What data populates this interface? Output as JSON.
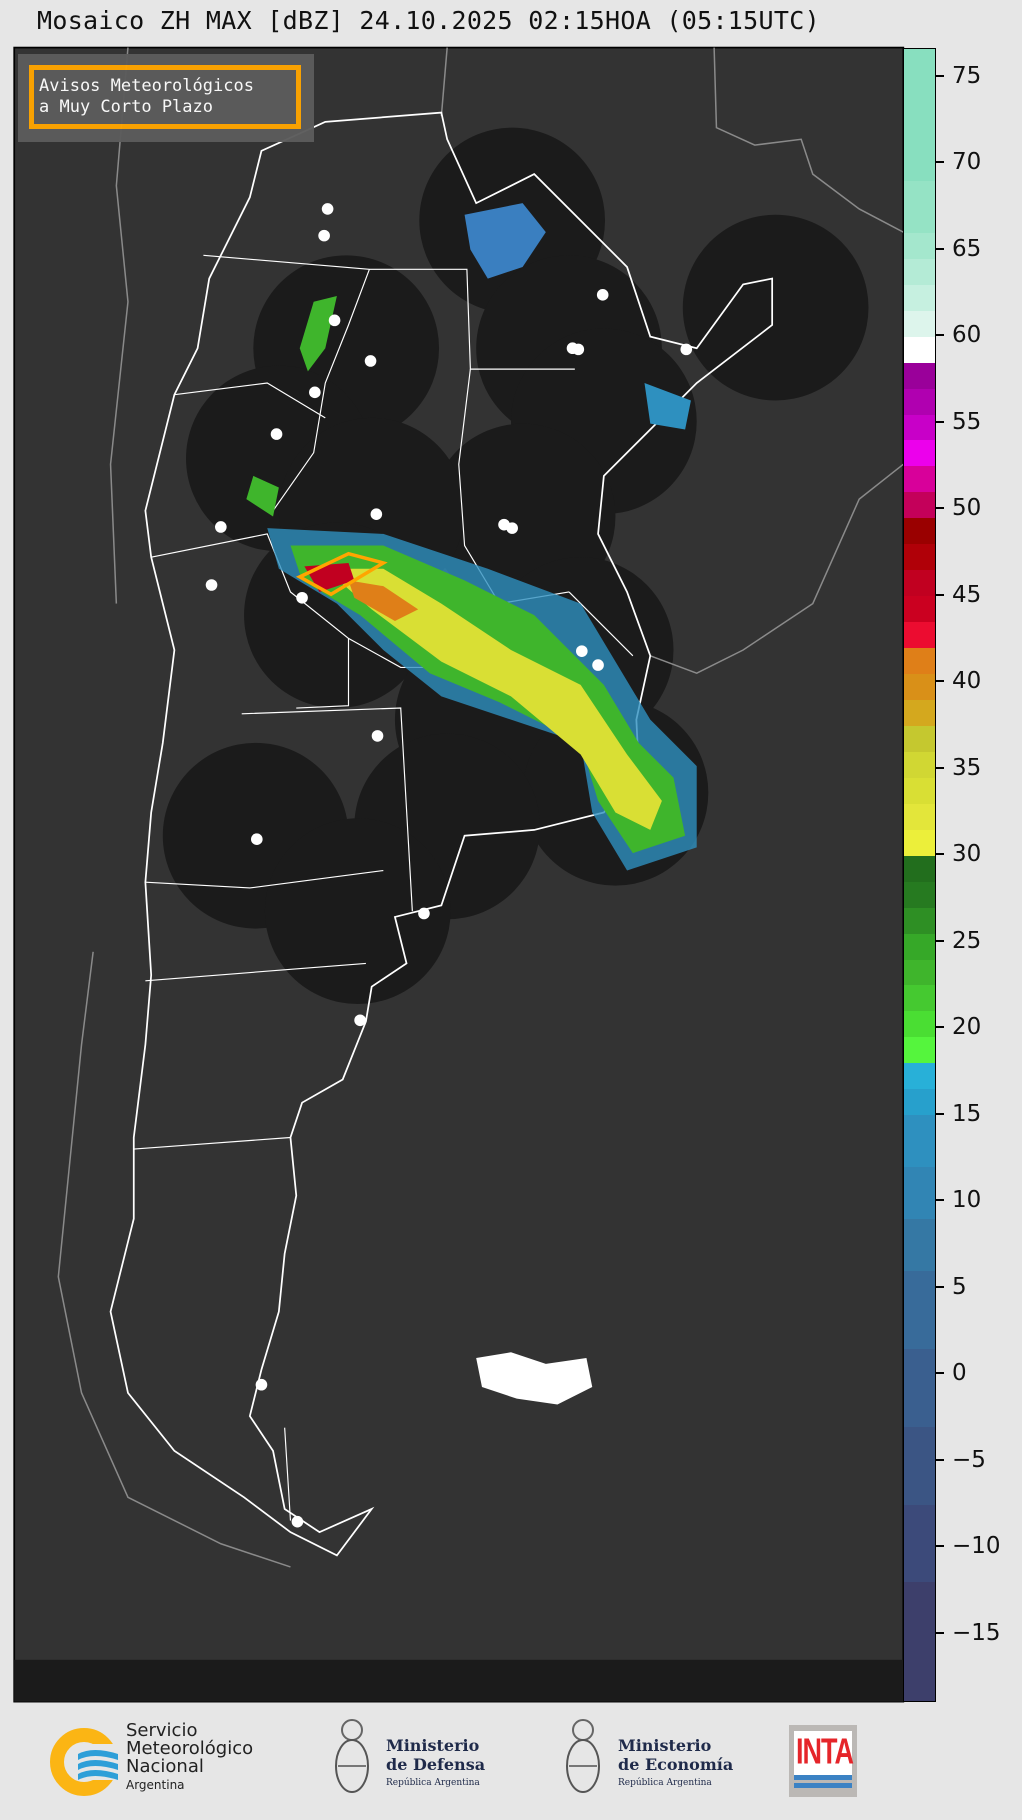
{
  "title": "Mosaico ZH MAX [dBZ] 24.10.2025 02:15HOA (05:15UTC)",
  "legend_box": {
    "line1": "Avisos Meteorológicos",
    "line2": "a Muy Corto Plazo",
    "border_color": "#ffa500"
  },
  "colorbar": {
    "unit": "dBZ",
    "range": [
      -19,
      76.6
    ],
    "ticks": [
      "75",
      "70",
      "65",
      "60",
      "55",
      "50",
      "45",
      "40",
      "35",
      "30",
      "25",
      "20",
      "15",
      "10",
      "5",
      "0",
      "−5",
      "−10",
      "−15"
    ],
    "tick_values": [
      75,
      70,
      65,
      60,
      55,
      50,
      45,
      40,
      35,
      30,
      25,
      20,
      15,
      10,
      5,
      0,
      -5,
      -10,
      -15
    ],
    "bins": [
      [
        -19,
        "#3d3f6b"
      ],
      [
        -12,
        "#3c4a7a"
      ],
      [
        -7.5,
        "#3b5584"
      ],
      [
        -3,
        "#3a5f8f"
      ],
      [
        1.5,
        "#386b9a"
      ],
      [
        6,
        "#3578a4"
      ],
      [
        9,
        "#3185b4"
      ],
      [
        12,
        "#2e90bf"
      ],
      [
        15,
        "#27a0cc"
      ],
      [
        16.5,
        "#28b0d8"
      ],
      [
        18,
        "#55f53d"
      ],
      [
        19.5,
        "#4ade33"
      ],
      [
        21,
        "#45c930"
      ],
      [
        22.5,
        "#3fb52c"
      ],
      [
        24,
        "#36a828"
      ],
      [
        25.5,
        "#2e8f24"
      ],
      [
        27,
        "#267a20"
      ],
      [
        28.5,
        "#226e1d"
      ],
      [
        30,
        "#ecef3a"
      ],
      [
        31.5,
        "#e3e63a"
      ],
      [
        33,
        "#d9df34"
      ],
      [
        34.5,
        "#d1d733"
      ],
      [
        36,
        "#c5c82f"
      ],
      [
        37.5,
        "#d4a81e"
      ],
      [
        39,
        "#d99018"
      ],
      [
        40.5,
        "#df7f18"
      ],
      [
        42,
        "#ec0c30"
      ],
      [
        43.5,
        "#cb0020"
      ],
      [
        45,
        "#c10020"
      ],
      [
        46.5,
        "#b00008"
      ],
      [
        48,
        "#9a0000"
      ],
      [
        49.5,
        "#c4005a"
      ],
      [
        51,
        "#d8009a"
      ],
      [
        52.5,
        "#ec00ec"
      ],
      [
        54,
        "#c800c8"
      ],
      [
        55.5,
        "#b000b0"
      ],
      [
        57,
        "#9a009a"
      ],
      [
        58.5,
        "#ffffff"
      ],
      [
        60,
        "#ddf5ec"
      ],
      [
        61.5,
        "#c6f0e0"
      ],
      [
        63,
        "#b4ebd6"
      ],
      [
        64.5,
        "#a4e7cd"
      ],
      [
        66,
        "#95e3c5"
      ],
      [
        69,
        "#88dfbf"
      ]
    ]
  },
  "map": {
    "background": "#333333",
    "radar_coverage_color": "#1b1b1b",
    "border_color": "#ffffff",
    "coast_color": "#8a8a8a"
  },
  "footer": {
    "smn": {
      "line1": "Servicio",
      "line2": "Meteorológico",
      "line3": "Nacional",
      "line4": "Argentina"
    },
    "defensa": {
      "line1": "Ministerio",
      "line2": "de Defensa",
      "line3": "República Argentina"
    },
    "economia": {
      "line1": "Ministerio",
      "line2": "de Economía",
      "line3": "República Argentina"
    },
    "inta": {
      "label": "INTA"
    }
  }
}
